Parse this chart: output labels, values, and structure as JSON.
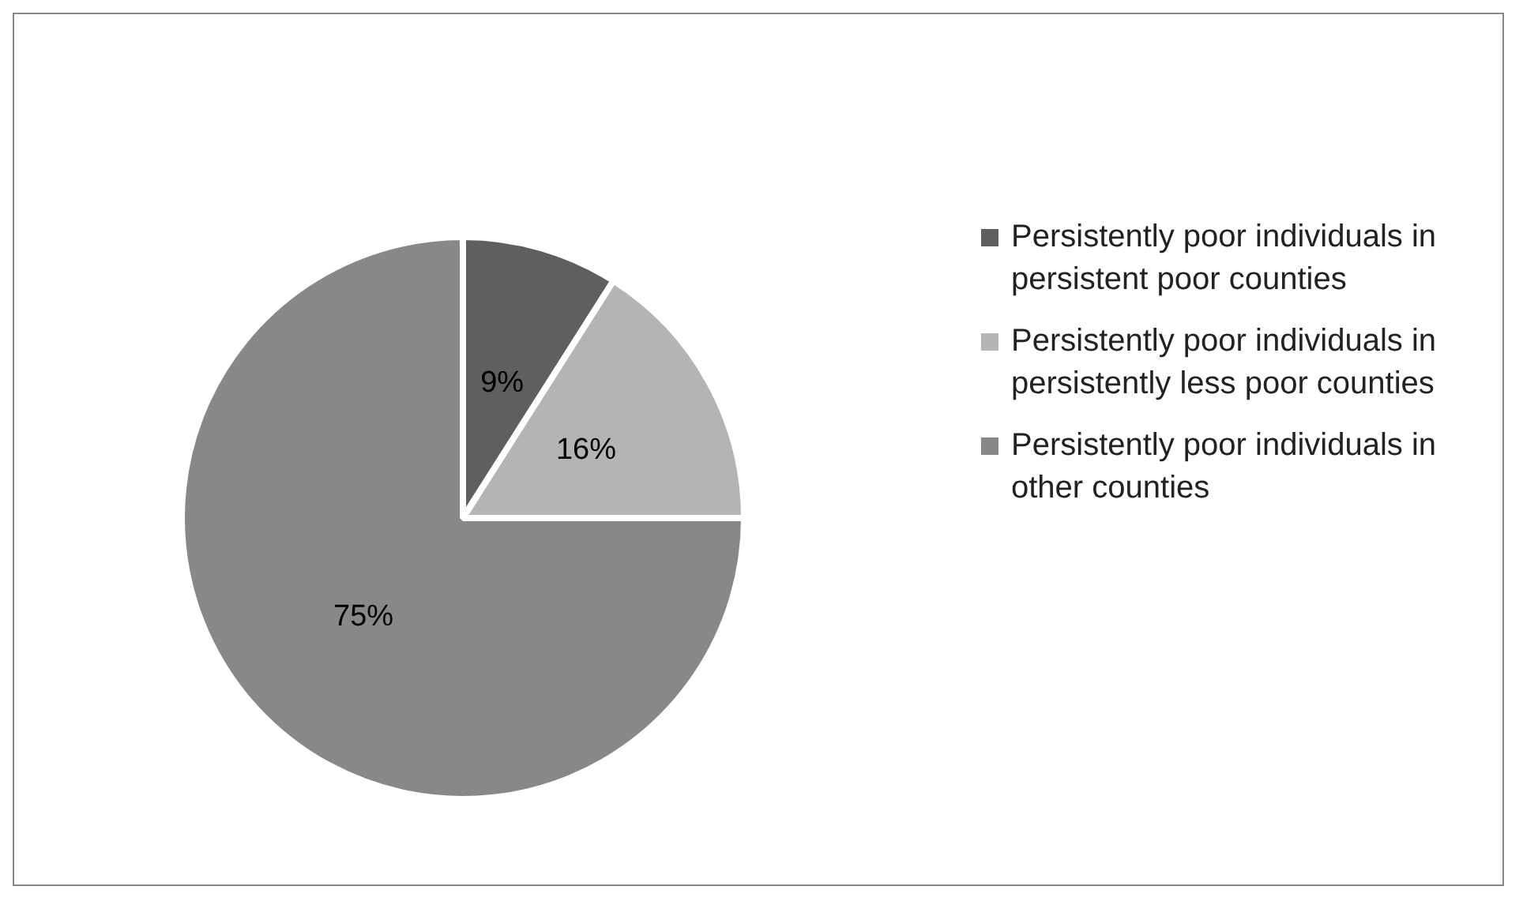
{
  "chart_data": {
    "type": "pie",
    "categories": [
      "Persistently poor individuals in persistent poor counties",
      "Persistently poor individuals in persistently less poor counties",
      "Persistently poor individuals in other counties"
    ],
    "values": [
      9,
      16,
      75
    ],
    "colors": [
      "#5f5f5f",
      "#b4b4b4",
      "#888888"
    ],
    "value_labels": [
      "9%",
      "16%",
      "75%"
    ],
    "legend": "right"
  }
}
